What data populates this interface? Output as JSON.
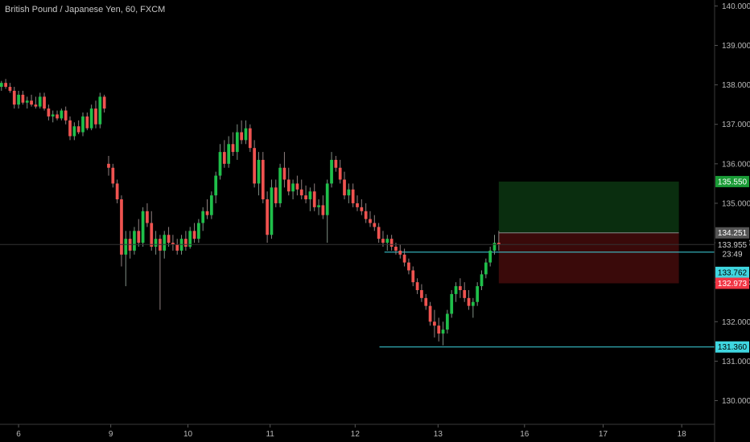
{
  "title": "British Pound / Japanese Yen, 60, FXCM",
  "colors": {
    "background": "#000000",
    "up": "#26a69a",
    "up_bright": "#1fbf4a",
    "down": "#ef5350",
    "level_line": "#3fd6e0",
    "target_zone": "#0a2e0f",
    "stop_zone": "#3a0a0a",
    "axis_text": "#b9b9b9"
  },
  "chart_data": {
    "type": "candlestick",
    "x_ticks": [
      "6",
      "9",
      "10",
      "11",
      "12",
      "13",
      "16",
      "17",
      "18"
    ],
    "y_ticks": [
      "140.000",
      "139.000",
      "138.000",
      "137.000",
      "136.000",
      "135.000",
      "134.000",
      "133.000",
      "132.000",
      "131.000",
      "130.000"
    ],
    "ylim": [
      129.4,
      140.15
    ],
    "x_domain": [
      0,
      100
    ],
    "tick_positions": [
      2.6,
      15.5,
      26.3,
      37.8,
      49.7,
      61.3,
      73.4,
      84.4,
      95.4
    ],
    "levels": [
      {
        "price": 133.762,
        "x_from": 53.8,
        "color_key": "level_line"
      },
      {
        "price": 131.36,
        "x_from": 53.1,
        "color_key": "level_line"
      }
    ],
    "zones": [
      {
        "from": 134.251,
        "to": 135.55,
        "x_from": 69.8,
        "x_to": 95.0,
        "color_key": "target_zone"
      },
      {
        "from": 132.973,
        "to": 134.251,
        "x_from": 69.8,
        "x_to": 95.0,
        "color_key": "stop_zone"
      }
    ],
    "price_tags": [
      {
        "label": "135.550",
        "price": 135.55,
        "bg": "#1a9b36",
        "fg": "#ffffff"
      },
      {
        "label": "134.251",
        "price": 134.251,
        "bg": "#555555",
        "fg": "#ffffff"
      },
      {
        "label": "133.955",
        "price": 133.955,
        "bg": "#000000",
        "fg": "#d0d0d0"
      },
      {
        "label": "23:49",
        "price": 133.72,
        "bg": "#000000",
        "fg": "#d0d0d0"
      },
      {
        "label": "133.762",
        "price": 133.25,
        "bg": "#3fd6e0",
        "fg": "#000000"
      },
      {
        "label": "132.973",
        "price": 132.973,
        "bg": "#f23645",
        "fg": "#ffffff"
      },
      {
        "label": "131.360",
        "price": 131.36,
        "bg": "#3fd6e0",
        "fg": "#000000"
      }
    ],
    "candles": [
      [
        0.2,
        137.95,
        138.1,
        137.85,
        138.05
      ],
      [
        0.8,
        138.05,
        138.15,
        137.9,
        137.95
      ],
      [
        1.4,
        137.95,
        138.05,
        137.8,
        137.85
      ],
      [
        2.0,
        137.85,
        137.95,
        137.4,
        137.5
      ],
      [
        2.6,
        137.5,
        137.85,
        137.4,
        137.75
      ],
      [
        3.2,
        137.75,
        137.85,
        137.5,
        137.55
      ],
      [
        3.8,
        137.55,
        137.7,
        137.4,
        137.6
      ],
      [
        4.4,
        137.6,
        137.75,
        137.45,
        137.5
      ],
      [
        5.0,
        137.5,
        137.7,
        137.4,
        137.45
      ],
      [
        5.6,
        137.45,
        137.8,
        137.4,
        137.7
      ],
      [
        6.2,
        137.7,
        137.8,
        137.35,
        137.4
      ],
      [
        6.8,
        137.4,
        137.5,
        137.1,
        137.2
      ],
      [
        7.4,
        137.2,
        137.35,
        137.05,
        137.25
      ],
      [
        8.0,
        137.25,
        137.35,
        137.1,
        137.15
      ],
      [
        8.6,
        137.15,
        137.4,
        137.1,
        137.35
      ],
      [
        9.2,
        137.35,
        137.45,
        137.0,
        137.1
      ],
      [
        9.8,
        137.1,
        137.2,
        136.6,
        136.7
      ],
      [
        10.4,
        136.7,
        137.05,
        136.6,
        136.95
      ],
      [
        11.0,
        136.95,
        137.1,
        136.75,
        136.8
      ],
      [
        11.6,
        136.8,
        137.3,
        136.7,
        137.2
      ],
      [
        12.2,
        137.2,
        137.3,
        136.85,
        136.9
      ],
      [
        12.8,
        136.9,
        137.5,
        136.85,
        137.4
      ],
      [
        13.4,
        137.4,
        137.6,
        136.9,
        137.0
      ],
      [
        14.0,
        137.0,
        137.8,
        136.9,
        137.7
      ],
      [
        14.6,
        137.7,
        137.75,
        137.3,
        137.4
      ],
      [
        15.2,
        136.0,
        136.2,
        135.7,
        135.9
      ],
      [
        15.8,
        135.9,
        136.0,
        135.4,
        135.5
      ],
      [
        16.4,
        135.5,
        135.6,
        135.0,
        135.1
      ],
      [
        17.0,
        135.1,
        135.2,
        133.4,
        133.7
      ],
      [
        17.6,
        133.7,
        134.3,
        132.9,
        134.1
      ],
      [
        18.2,
        134.1,
        134.3,
        133.6,
        133.8
      ],
      [
        18.8,
        133.8,
        134.4,
        133.7,
        134.3
      ],
      [
        19.4,
        134.3,
        134.6,
        133.9,
        134.0
      ],
      [
        20.0,
        134.0,
        134.9,
        133.9,
        134.8
      ],
      [
        20.6,
        134.8,
        135.0,
        134.4,
        134.5
      ],
      [
        21.2,
        134.5,
        134.8,
        133.8,
        133.9
      ],
      [
        21.8,
        133.9,
        134.3,
        133.7,
        134.1
      ],
      [
        22.4,
        134.1,
        134.2,
        132.3,
        133.8
      ],
      [
        23.0,
        133.8,
        134.3,
        133.6,
        134.2
      ],
      [
        23.6,
        134.2,
        134.4,
        133.9,
        134.0
      ],
      [
        24.2,
        134.0,
        134.2,
        133.8,
        133.95
      ],
      [
        24.8,
        133.95,
        134.1,
        133.7,
        133.8
      ],
      [
        25.4,
        133.8,
        134.2,
        133.7,
        134.1
      ],
      [
        26.0,
        134.1,
        134.3,
        133.8,
        133.9
      ],
      [
        26.6,
        133.9,
        134.4,
        133.85,
        134.3
      ],
      [
        27.2,
        134.3,
        134.5,
        134.0,
        134.1
      ],
      [
        27.8,
        134.1,
        134.6,
        134.0,
        134.5
      ],
      [
        28.4,
        134.5,
        134.9,
        134.3,
        134.8
      ],
      [
        29.0,
        134.8,
        135.1,
        134.6,
        134.7
      ],
      [
        29.6,
        134.7,
        135.3,
        134.6,
        135.2
      ],
      [
        30.2,
        135.2,
        135.8,
        135.0,
        135.7
      ],
      [
        30.8,
        135.7,
        136.5,
        135.6,
        136.3
      ],
      [
        31.4,
        136.3,
        136.6,
        135.9,
        136.0
      ],
      [
        32.0,
        136.0,
        136.7,
        135.9,
        136.5
      ],
      [
        32.6,
        136.5,
        136.8,
        136.2,
        136.3
      ],
      [
        33.2,
        136.3,
        137.0,
        136.1,
        136.8
      ],
      [
        33.8,
        136.8,
        137.1,
        136.5,
        136.6
      ],
      [
        34.4,
        136.6,
        137.1,
        136.5,
        136.9
      ],
      [
        35.0,
        136.9,
        137.0,
        136.3,
        136.4
      ],
      [
        35.6,
        136.4,
        136.6,
        135.4,
        135.5
      ],
      [
        36.2,
        135.5,
        136.3,
        135.2,
        136.1
      ],
      [
        36.8,
        136.1,
        136.3,
        135.0,
        135.1
      ],
      [
        37.4,
        135.1,
        135.3,
        134.0,
        134.2
      ],
      [
        38.0,
        134.2,
        135.6,
        134.1,
        135.4
      ],
      [
        38.6,
        135.4,
        135.6,
        134.9,
        135.0
      ],
      [
        39.2,
        135.0,
        136.0,
        134.9,
        135.9
      ],
      [
        39.8,
        135.9,
        136.3,
        135.4,
        135.6
      ],
      [
        40.4,
        135.6,
        135.9,
        135.2,
        135.3
      ],
      [
        41.0,
        135.3,
        135.6,
        135.1,
        135.5
      ],
      [
        41.6,
        135.5,
        135.7,
        135.2,
        135.35
      ],
      [
        42.2,
        135.35,
        135.6,
        135.1,
        135.2
      ],
      [
        42.8,
        135.2,
        135.45,
        135.0,
        135.1
      ],
      [
        43.4,
        135.1,
        135.4,
        134.8,
        135.3
      ],
      [
        44.0,
        135.3,
        135.5,
        134.8,
        134.9
      ],
      [
        44.6,
        134.9,
        135.1,
        134.7,
        134.95
      ],
      [
        45.2,
        134.95,
        135.2,
        134.6,
        134.7
      ],
      [
        45.8,
        134.7,
        135.6,
        134.0,
        135.5
      ],
      [
        46.4,
        135.5,
        136.3,
        135.4,
        136.1
      ],
      [
        47.0,
        136.1,
        136.2,
        135.8,
        135.9
      ],
      [
        47.6,
        135.9,
        136.1,
        135.5,
        135.6
      ],
      [
        48.2,
        135.6,
        135.8,
        135.1,
        135.2
      ],
      [
        48.8,
        135.2,
        135.5,
        135.0,
        135.35
      ],
      [
        49.4,
        135.35,
        135.5,
        134.9,
        135.0
      ],
      [
        50.0,
        135.0,
        135.2,
        134.8,
        134.9
      ],
      [
        50.6,
        134.9,
        135.1,
        134.7,
        134.8
      ],
      [
        51.2,
        134.8,
        135.0,
        134.5,
        134.6
      ],
      [
        51.8,
        134.6,
        134.8,
        134.4,
        134.5
      ],
      [
        52.4,
        134.5,
        134.7,
        134.3,
        134.4
      ],
      [
        53.0,
        134.4,
        134.5,
        134.0,
        134.1
      ],
      [
        53.6,
        134.1,
        134.3,
        133.9,
        134.0
      ],
      [
        54.2,
        134.0,
        134.2,
        133.8,
        134.1
      ],
      [
        54.8,
        134.1,
        134.2,
        133.8,
        133.9
      ],
      [
        55.4,
        133.9,
        134.0,
        133.7,
        133.8
      ],
      [
        56.0,
        133.8,
        133.95,
        133.6,
        133.7
      ],
      [
        56.6,
        133.7,
        133.85,
        133.4,
        133.5
      ],
      [
        57.2,
        133.5,
        133.6,
        133.2,
        133.3
      ],
      [
        57.8,
        133.3,
        133.4,
        132.9,
        133.0
      ],
      [
        58.4,
        133.0,
        133.1,
        132.7,
        132.8
      ],
      [
        59.0,
        132.8,
        132.95,
        132.5,
        132.6
      ],
      [
        59.6,
        132.6,
        132.7,
        132.3,
        132.4
      ],
      [
        60.2,
        132.4,
        132.5,
        131.9,
        132.0
      ],
      [
        60.8,
        132.0,
        132.3,
        131.6,
        131.9
      ],
      [
        61.4,
        131.9,
        132.1,
        131.5,
        131.7
      ],
      [
        62.0,
        131.7,
        132.0,
        131.4,
        131.8
      ],
      [
        62.6,
        131.8,
        132.3,
        131.7,
        132.2
      ],
      [
        63.2,
        132.2,
        132.8,
        132.1,
        132.7
      ],
      [
        63.8,
        132.7,
        133.0,
        132.5,
        132.9
      ],
      [
        64.4,
        132.9,
        133.1,
        132.6,
        132.8
      ],
      [
        65.0,
        132.8,
        133.0,
        132.5,
        132.6
      ],
      [
        65.6,
        132.6,
        132.8,
        132.3,
        132.4
      ],
      [
        66.2,
        132.4,
        132.6,
        132.1,
        132.5
      ],
      [
        66.8,
        132.5,
        133.0,
        132.4,
        132.9
      ],
      [
        67.4,
        132.9,
        133.3,
        132.8,
        133.2
      ],
      [
        68.0,
        133.2,
        133.6,
        133.1,
        133.5
      ],
      [
        68.6,
        133.5,
        133.9,
        133.4,
        133.8
      ],
      [
        69.2,
        133.8,
        134.2,
        133.7,
        134.0
      ],
      [
        69.8,
        134.0,
        134.3,
        133.8,
        133.955
      ]
    ]
  }
}
